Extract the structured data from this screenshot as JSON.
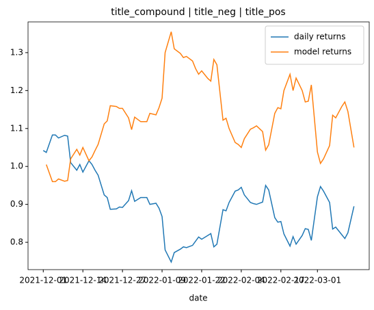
{
  "chart_data": {
    "type": "line",
    "title": "title_compound | title_neg | title_pos",
    "xlabel": "date",
    "x": [
      "2021-12-01",
      "2021-12-02",
      "2021-12-04",
      "2021-12-05",
      "2021-12-06",
      "2021-12-08",
      "2021-12-09",
      "2021-12-10",
      "2021-12-12",
      "2021-12-13",
      "2021-12-14",
      "2021-12-16",
      "2021-12-17",
      "2021-12-18",
      "2021-12-19",
      "2021-12-21",
      "2021-12-22",
      "2021-12-23",
      "2021-12-25",
      "2021-12-26",
      "2021-12-27",
      "2021-12-29",
      "2021-12-30",
      "2021-12-31",
      "2022-01-02",
      "2022-01-03",
      "2022-01-04",
      "2022-01-05",
      "2022-01-07",
      "2022-01-08",
      "2022-01-09",
      "2022-01-10",
      "2022-01-12",
      "2022-01-13",
      "2022-01-15",
      "2022-01-16",
      "2022-01-17",
      "2022-01-19",
      "2022-01-20",
      "2022-01-21",
      "2022-01-22",
      "2022-01-24",
      "2022-01-25",
      "2022-01-26",
      "2022-01-27",
      "2022-01-29",
      "2022-01-30",
      "2022-01-31",
      "2022-02-02",
      "2022-02-03",
      "2022-02-04",
      "2022-02-05",
      "2022-02-07",
      "2022-02-08",
      "2022-02-09",
      "2022-02-11",
      "2022-02-12",
      "2022-02-13",
      "2022-02-15",
      "2022-02-16",
      "2022-02-17",
      "2022-02-18",
      "2022-02-20",
      "2022-02-21",
      "2022-02-22",
      "2022-02-24",
      "2022-02-25",
      "2022-02-26",
      "2022-02-27",
      "2022-03-01",
      "2022-03-02",
      "2022-03-03",
      "2022-03-05",
      "2022-03-06",
      "2022-03-07",
      "2022-03-09",
      "2022-03-10",
      "2022-03-11",
      "2022-03-13"
    ],
    "series": [
      {
        "name": "daily returns",
        "color": "#1f77b4",
        "values": [
          1.042,
          1.037,
          1.083,
          1.083,
          1.075,
          1.082,
          1.08,
          1.01,
          0.99,
          1.005,
          0.985,
          1.015,
          1.005,
          0.99,
          0.977,
          0.925,
          0.918,
          0.887,
          0.888,
          0.893,
          0.892,
          0.91,
          0.936,
          0.908,
          0.918,
          0.918,
          0.918,
          0.9,
          0.903,
          0.89,
          0.868,
          0.78,
          0.748,
          0.773,
          0.782,
          0.788,
          0.786,
          0.792,
          0.803,
          0.814,
          0.808,
          0.818,
          0.823,
          0.788,
          0.795,
          0.886,
          0.883,
          0.905,
          0.935,
          0.938,
          0.945,
          0.925,
          0.905,
          0.902,
          0.9,
          0.906,
          0.95,
          0.938,
          0.865,
          0.853,
          0.855,
          0.822,
          0.79,
          0.815,
          0.795,
          0.818,
          0.836,
          0.834,
          0.805,
          0.92,
          0.947,
          0.935,
          0.905,
          0.835,
          0.84,
          0.82,
          0.81,
          0.825,
          0.895
        ]
      },
      {
        "name": "model returns",
        "color": "#ff7f0e",
        "values": [
          null,
          1.005,
          0.96,
          0.96,
          0.967,
          0.961,
          0.963,
          1.02,
          1.045,
          1.03,
          1.05,
          1.015,
          1.025,
          1.042,
          1.058,
          1.112,
          1.12,
          1.16,
          1.158,
          1.153,
          1.153,
          1.128,
          1.097,
          1.13,
          1.118,
          1.118,
          1.118,
          1.14,
          1.136,
          1.155,
          1.18,
          1.3,
          1.355,
          1.31,
          1.298,
          1.287,
          1.29,
          1.278,
          1.258,
          1.243,
          1.252,
          1.232,
          1.225,
          1.282,
          1.268,
          1.122,
          1.127,
          1.1,
          1.063,
          1.058,
          1.05,
          1.073,
          1.098,
          1.102,
          1.107,
          1.092,
          1.043,
          1.057,
          1.14,
          1.155,
          1.152,
          1.2,
          1.243,
          1.2,
          1.233,
          1.2,
          1.17,
          1.172,
          1.215,
          1.038,
          1.008,
          1.02,
          1.055,
          1.135,
          1.128,
          1.158,
          1.17,
          1.145,
          1.05
        ]
      }
    ],
    "xlim": [
      "2021-11-26",
      "2022-03-18"
    ],
    "xticks": [
      "2021-12-01",
      "2021-12-14",
      "2021-12-27",
      "2022-01-09",
      "2022-01-22",
      "2022-02-04",
      "2022-02-17",
      "2022-03-01"
    ],
    "ylim": [
      0.728,
      1.381
    ],
    "yticks": [
      0.8,
      0.9,
      {
        "value": 1,
        "label": "1.0"
      },
      1.1,
      1.2,
      1.3
    ],
    "legend": "upper right"
  }
}
